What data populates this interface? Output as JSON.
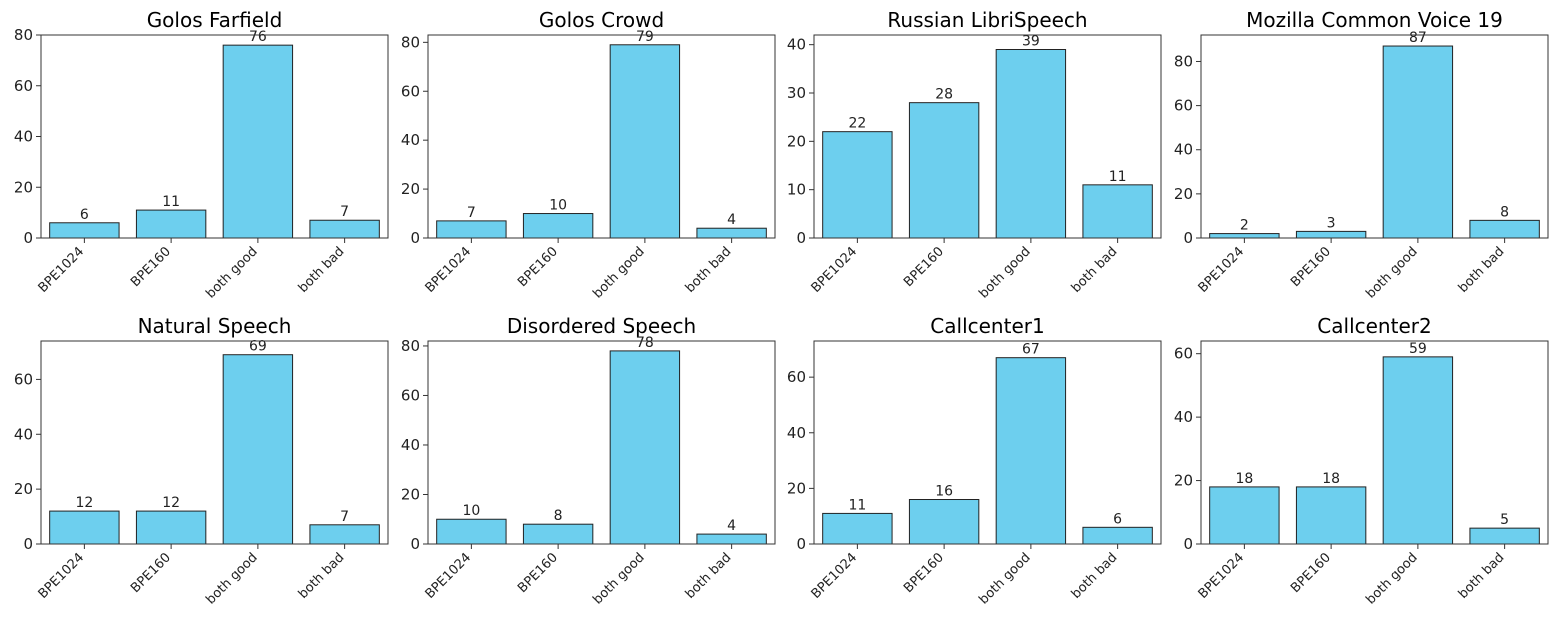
{
  "colors": {
    "bar": "#6dcfee"
  },
  "chart_data": [
    {
      "type": "bar",
      "title": "Golos Farfield",
      "categories": [
        "BPE1024",
        "BPE160",
        "both good",
        "both bad"
      ],
      "values": [
        6,
        11,
        76,
        7
      ],
      "ylim": [
        0,
        80
      ],
      "yticks": [
        0,
        20,
        40,
        60,
        80
      ],
      "xlabel": "",
      "ylabel": ""
    },
    {
      "type": "bar",
      "title": "Golos Crowd",
      "categories": [
        "BPE1024",
        "BPE160",
        "both good",
        "both bad"
      ],
      "values": [
        7,
        10,
        79,
        4
      ],
      "ylim": [
        0,
        83
      ],
      "yticks": [
        0,
        20,
        40,
        60,
        80
      ],
      "xlabel": "",
      "ylabel": ""
    },
    {
      "type": "bar",
      "title": "Russian LibriSpeech",
      "categories": [
        "BPE1024",
        "BPE160",
        "both good",
        "both bad"
      ],
      "values": [
        22,
        28,
        39,
        11
      ],
      "ylim": [
        0,
        42
      ],
      "yticks": [
        0,
        10,
        20,
        30,
        40
      ],
      "xlabel": "",
      "ylabel": ""
    },
    {
      "type": "bar",
      "title": "Mozilla Common Voice 19",
      "categories": [
        "BPE1024",
        "BPE160",
        "both good",
        "both bad"
      ],
      "values": [
        2,
        3,
        87,
        8
      ],
      "ylim": [
        0,
        92
      ],
      "yticks": [
        0,
        20,
        40,
        60,
        80
      ],
      "xlabel": "",
      "ylabel": ""
    },
    {
      "type": "bar",
      "title": "Natural Speech",
      "categories": [
        "BPE1024",
        "BPE160",
        "both good",
        "both bad"
      ],
      "values": [
        12,
        12,
        69,
        7
      ],
      "ylim": [
        0,
        74
      ],
      "yticks": [
        0,
        20,
        40,
        60
      ],
      "xlabel": "",
      "ylabel": ""
    },
    {
      "type": "bar",
      "title": "Disordered Speech",
      "categories": [
        "BPE1024",
        "BPE160",
        "both good",
        "both bad"
      ],
      "values": [
        10,
        8,
        78,
        4
      ],
      "ylim": [
        0,
        82
      ],
      "yticks": [
        0,
        20,
        40,
        60,
        80
      ],
      "xlabel": "",
      "ylabel": ""
    },
    {
      "type": "bar",
      "title": "Callcenter1",
      "categories": [
        "BPE1024",
        "BPE160",
        "both good",
        "both bad"
      ],
      "values": [
        11,
        16,
        67,
        6
      ],
      "ylim": [
        0,
        73
      ],
      "yticks": [
        0,
        20,
        40,
        60
      ],
      "xlabel": "",
      "ylabel": ""
    },
    {
      "type": "bar",
      "title": "Callcenter2",
      "categories": [
        "BPE1024",
        "BPE160",
        "both good",
        "both bad"
      ],
      "values": [
        18,
        18,
        59,
        5
      ],
      "ylim": [
        0,
        64
      ],
      "yticks": [
        0,
        20,
        40,
        60
      ],
      "xlabel": "",
      "ylabel": ""
    }
  ]
}
